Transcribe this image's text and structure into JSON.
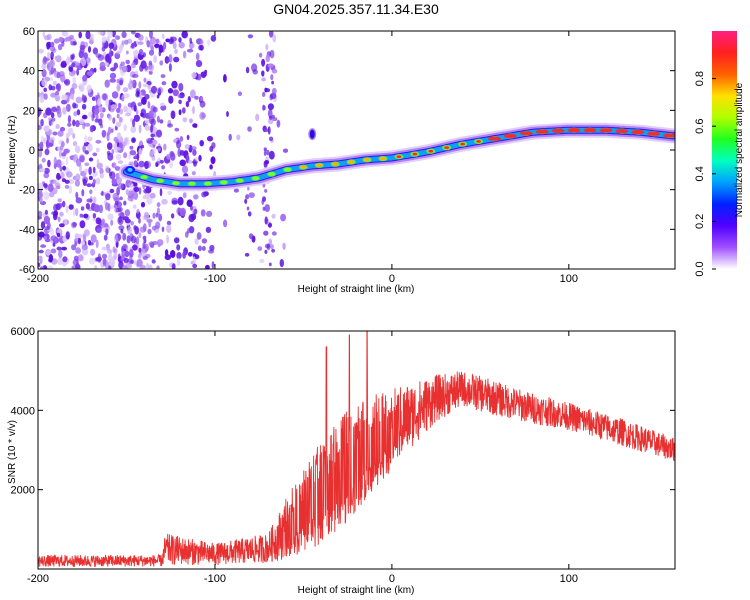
{
  "title": "GN04.2025.357.11.34.E30",
  "colors": {
    "snr_line": "#e83030",
    "axis": "#000000",
    "ridge_core": "#e63232",
    "noise_dots": "#6a1ee6"
  },
  "chart_data": [
    {
      "type": "heatmap",
      "title": "GN04.2025.357.11.34.E30",
      "xlabel": "Height of straight line (km)",
      "ylabel": "Frequency (Hz)",
      "xlim": [
        -200,
        160
      ],
      "ylim": [
        -60,
        60
      ],
      "x_ticks": [
        -200,
        -100,
        0,
        100
      ],
      "x_tick_labels": [
        "-200",
        "-100",
        "0",
        "100"
      ],
      "y_ticks": [
        -60,
        -40,
        -20,
        0,
        20,
        40,
        60
      ],
      "y_tick_labels": [
        "-60",
        "-40",
        "-20",
        "0",
        "20",
        "40",
        "60"
      ],
      "colorbar": {
        "label": "Normalized spectral amplitude",
        "range": [
          0,
          1
        ],
        "ticks": [
          0.0,
          0.2,
          0.4,
          0.6,
          0.8
        ],
        "tick_labels": [
          "0.0",
          "0.2",
          "0.4",
          "0.6",
          "0.8"
        ],
        "stops": [
          "#ffffff",
          "#a050ff",
          "#5000ff",
          "#0020ff",
          "#00a0ff",
          "#00ffc0",
          "#20ff20",
          "#b0ff00",
          "#ffe000",
          "#ff6000",
          "#ff2020",
          "#ff2080"
        ]
      },
      "ridge": {
        "description_points": [
          {
            "x": -150,
            "y": -11
          },
          {
            "x": -135,
            "y": -15
          },
          {
            "x": -120,
            "y": -17
          },
          {
            "x": -105,
            "y": -17
          },
          {
            "x": -90,
            "y": -16
          },
          {
            "x": -75,
            "y": -14
          },
          {
            "x": -60,
            "y": -10
          },
          {
            "x": -45,
            "y": -8
          },
          {
            "x": -30,
            "y": -7
          },
          {
            "x": -15,
            "y": -5
          },
          {
            "x": 0,
            "y": -4
          },
          {
            "x": 20,
            "y": -1
          },
          {
            "x": 40,
            "y": 3
          },
          {
            "x": 60,
            "y": 6
          },
          {
            "x": 80,
            "y": 9
          },
          {
            "x": 100,
            "y": 10
          },
          {
            "x": 120,
            "y": 10
          },
          {
            "x": 140,
            "y": 9
          },
          {
            "x": 160,
            "y": 7
          }
        ]
      },
      "blob": {
        "x": -45,
        "y": 8
      }
    },
    {
      "type": "line",
      "xlabel": "Height of straight line (km)",
      "ylabel": "SNR (10 * v/v)",
      "xlim": [
        -200,
        160
      ],
      "ylim": [
        0,
        6000
      ],
      "x_ticks": [
        -200,
        -100,
        0,
        100
      ],
      "x_tick_labels": [
        "-200",
        "-100",
        "0",
        "100"
      ],
      "y_ticks": [
        2000,
        4000,
        6000
      ],
      "y_tick_labels": [
        "2000",
        "4000",
        "6000"
      ],
      "envelope": [
        {
          "x": -200,
          "lo": 50,
          "hi": 350
        },
        {
          "x": -130,
          "lo": 60,
          "hi": 360
        },
        {
          "x": -128,
          "lo": 100,
          "hi": 900
        },
        {
          "x": -100,
          "lo": 100,
          "hi": 650
        },
        {
          "x": -70,
          "lo": 150,
          "hi": 900
        },
        {
          "x": -55,
          "lo": 300,
          "hi": 2200
        },
        {
          "x": -45,
          "lo": 500,
          "hi": 3000
        },
        {
          "x": -35,
          "lo": 800,
          "hi": 3500
        },
        {
          "x": -25,
          "lo": 1200,
          "hi": 4000
        },
        {
          "x": -10,
          "lo": 2000,
          "hi": 4400
        },
        {
          "x": 10,
          "lo": 3000,
          "hi": 4700
        },
        {
          "x": 25,
          "lo": 3700,
          "hi": 4900
        },
        {
          "x": 40,
          "lo": 4100,
          "hi": 5000
        },
        {
          "x": 55,
          "lo": 3900,
          "hi": 4800
        },
        {
          "x": 75,
          "lo": 3700,
          "hi": 4500
        },
        {
          "x": 100,
          "lo": 3500,
          "hi": 4200
        },
        {
          "x": 130,
          "lo": 3100,
          "hi": 3800
        },
        {
          "x": 160,
          "lo": 2700,
          "hi": 3300
        }
      ],
      "spikes": [
        {
          "x": -37,
          "y": 5600
        },
        {
          "x": -24,
          "y": 5900
        },
        {
          "x": -14,
          "y": 6100
        }
      ]
    }
  ]
}
